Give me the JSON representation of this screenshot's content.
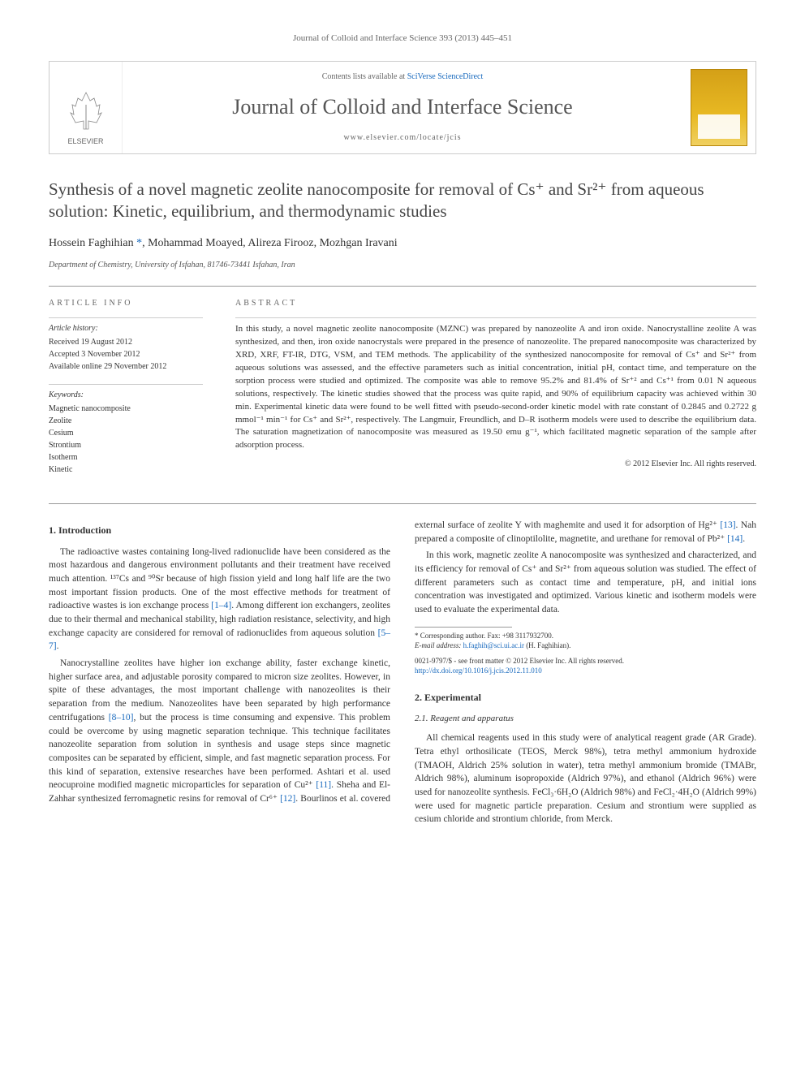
{
  "running_head": "Journal of Colloid and Interface Science 393 (2013) 445–451",
  "masthead": {
    "elsevier_label": "ELSEVIER",
    "contents_prefix": "Contents lists available at ",
    "contents_link": "SciVerse ScienceDirect",
    "journal_name": "Journal of Colloid and Interface Science",
    "journal_url": "www.elsevier.com/locate/jcis",
    "cover_colors": {
      "top": "#d4a017",
      "mid": "#e8b923",
      "bottom": "#f0d060",
      "border": "#b8860b"
    }
  },
  "title": "Synthesis of a novel magnetic zeolite nanocomposite for removal of Cs⁺ and Sr²⁺ from aqueous solution: Kinetic, equilibrium, and thermodynamic studies",
  "authors_html": "Hossein Faghihian <span class='corr'>*</span>, Mohammad Moayed, Alireza Firooz, Mozhgan Iravani",
  "affiliation": "Department of Chemistry, University of Isfahan, 81746-73441 Isfahan, Iran",
  "article_info": {
    "head": "ARTICLE INFO",
    "history_head": "Article history:",
    "history": [
      "Received 19 August 2012",
      "Accepted 3 November 2012",
      "Available online 29 November 2012"
    ],
    "keywords_head": "Keywords:",
    "keywords": [
      "Magnetic nanocomposite",
      "Zeolite",
      "Cesium",
      "Strontium",
      "Isotherm",
      "Kinetic"
    ]
  },
  "abstract": {
    "head": "ABSTRACT",
    "text": "In this study, a novel magnetic zeolite nanocomposite (MZNC) was prepared by nanozeolite A and iron oxide. Nanocrystalline zeolite A was synthesized, and then, iron oxide nanocrystals were prepared in the presence of nanozeolite. The prepared nanocomposite was characterized by XRD, XRF, FT-IR, DTG, VSM, and TEM methods. The applicability of the synthesized nanocomposite for removal of Cs⁺ and Sr²⁺ from aqueous solutions was assessed, and the effective parameters such as initial concentration, initial pH, contact time, and temperature on the sorption process were studied and optimized. The composite was able to remove 95.2% and 81.4% of Sr⁺² and Cs⁺¹ from 0.01 N aqueous solutions, respectively. The kinetic studies showed that the process was quite rapid, and 90% of equilibrium capacity was achieved within 30 min. Experimental kinetic data were found to be well fitted with pseudo-second-order kinetic model with rate constant of 0.2845 and 0.2722 g mmol⁻¹ min⁻¹ for Cs⁺ and Sr²⁺, respectively. The Langmuir, Freundlich, and D–R isotherm models were used to describe the equilibrium data. The saturation magnetization of nanocomposite was measured as 19.50 emu g⁻¹, which facilitated magnetic separation of the sample after adsorption process.",
    "copyright": "© 2012 Elsevier Inc. All rights reserved."
  },
  "sections": {
    "intro_head": "1. Introduction",
    "intro_p1": "The radioactive wastes containing long-lived radionuclide have been considered as the most hazardous and dangerous environment pollutants and their treatment have received much attention. ¹³⁷Cs and ⁹⁰Sr because of high fission yield and long half life are the two most important fission products. One of the most effective methods for treatment of radioactive wastes is ion exchange process ",
    "intro_p1_ref1": "[1–4]",
    "intro_p1_cont": ". Among different ion exchangers, zeolites due to their thermal and mechanical stability, high radiation resistance, selectivity, and high exchange capacity are considered for removal of radionuclides from aqueous solution ",
    "intro_p1_ref2": "[5–7]",
    "intro_p1_end": ".",
    "intro_p2": "Nanocrystalline zeolites have higher ion exchange ability, faster exchange kinetic, higher surface area, and adjustable porosity compared to micron size zeolites. However, in spite of these advantages, the most important challenge with nanozeolites is their separation from the medium. Nanozeolites have been separated by high performance centrifugations ",
    "intro_p2_ref1": "[8–10]",
    "intro_p2_cont": ", but the process is time consuming and expensive. This problem could be overcome by using magnetic separation technique. This technique facilitates nanozeolite separation from solution in synthesis and usage steps since magnetic composites can be separated by efficient, simple, and fast magnetic separation process. For this kind of separation, extensive researches have been performed. Ashtari et al. used neocuproine modified magnetic microparticles for separation of Cu²⁺ ",
    "intro_p2_ref2": "[11]",
    "intro_p2_mid": ". Sheha and El-Zahhar synthesized ferromagnetic resins for removal of Cr⁶⁺ ",
    "intro_p2_ref3": "[12]",
    "intro_p2_mid2": ". Bourlinos et al. covered external surface of zeolite Y with maghemite and used it for adsorption of Hg²⁺ ",
    "intro_p2_ref4": "[13]",
    "intro_p2_mid3": ". Nah prepared a composite of clinoptilolite, magnetite, and urethane for removal of Pb²⁺ ",
    "intro_p2_ref5": "[14]",
    "intro_p2_end": ".",
    "intro_p3": "In this work, magnetic zeolite A nanocomposite was synthesized and characterized, and its efficiency for removal of Cs⁺ and Sr²⁺ from aqueous solution was studied. The effect of different parameters such as contact time and temperature, pH, and initial ions concentration was investigated and optimized. Various kinetic and isotherm models were used to evaluate the experimental data.",
    "exp_head": "2. Experimental",
    "exp_sub1": "2.1. Reagent and apparatus",
    "exp_p1": "All chemical reagents used in this study were of analytical reagent grade (AR Grade). Tetra ethyl orthosilicate (TEOS, Merck 98%), tetra methyl ammonium hydroxide (TMAOH, Aldrich 25% solution in water), tetra methyl ammonium bromide (TMABr, Aldrich 98%), aluminum isopropoxide (Aldrich 97%), and ethanol (Aldrich 96%) were used for nanozeolite synthesis. FeCl₃·6H₂O (Aldrich 98%) and FeCl₂·4H₂O (Aldrich 99%) were used for magnetic particle preparation. Cesium and strontium were supplied as cesium chloride and strontium chloride, from Merck."
  },
  "footnote": {
    "corr_line": "* Corresponding author. Fax: +98 3117932700.",
    "email_label": "E-mail address: ",
    "email": "h.faghih@sci.ui.ac.ir",
    "email_suffix": " (H. Faghihian).",
    "rights1": "0021-9797/$ - see front matter © 2012 Elsevier Inc. All rights reserved.",
    "doi": "http://dx.doi.org/10.1016/j.jcis.2012.11.010"
  },
  "colors": {
    "link": "#1668bd",
    "text": "#333333",
    "muted": "#666666",
    "rule": "#999999"
  },
  "typography": {
    "body_pt": 11.5,
    "title_pt": 21,
    "journal_pt": 26,
    "abstract_pt": 11,
    "footnote_pt": 9
  }
}
